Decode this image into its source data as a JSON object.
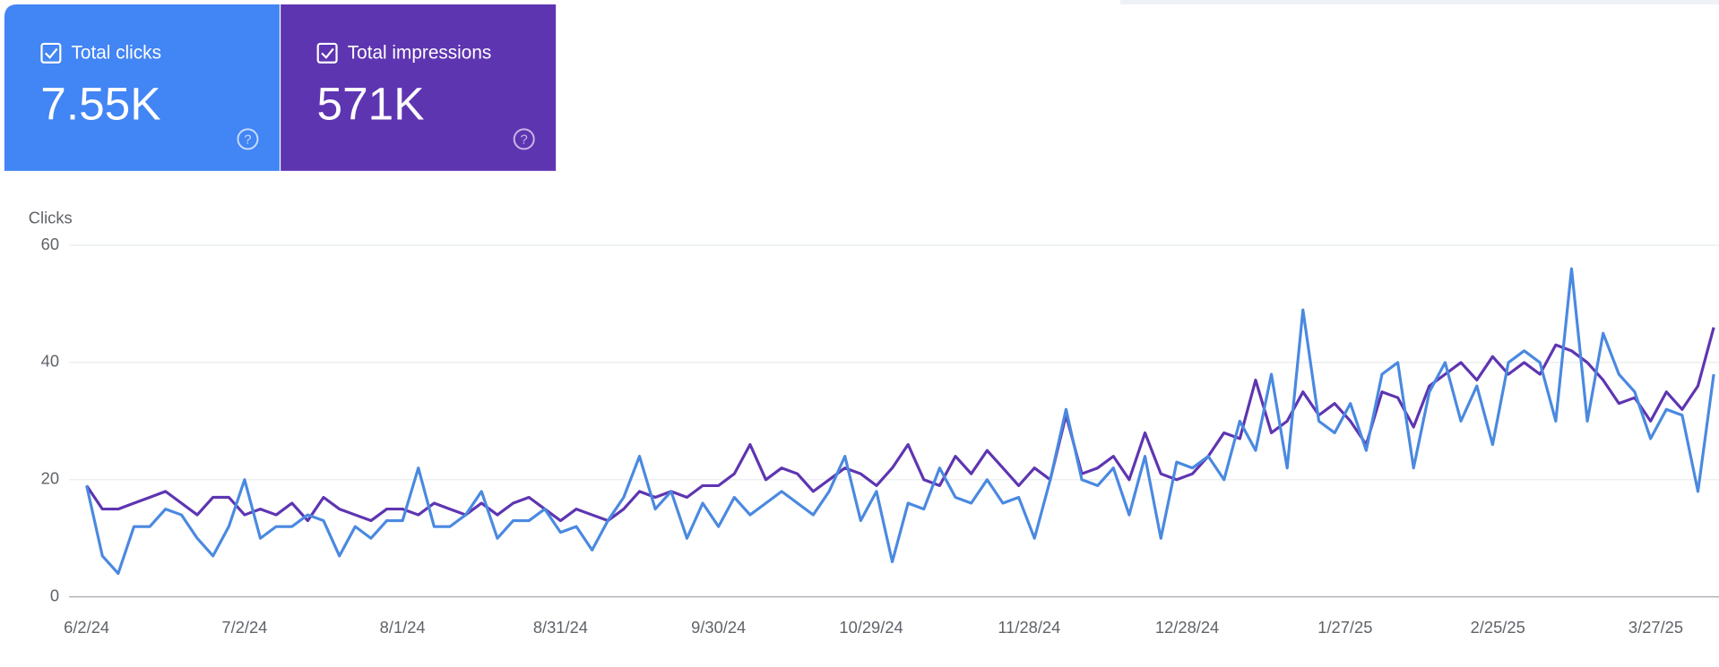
{
  "cards": [
    {
      "value": "7.55K"
    },
    {
      "value": "571K"
    }
  ],
  "chart_data": {
    "type": "line",
    "y_label": "Clicks",
    "x": [
      "6/2/24",
      "6/5/24",
      "6/8/24",
      "6/11/24",
      "6/14/24",
      "6/17/24",
      "6/20/24",
      "6/23/24",
      "6/26/24",
      "6/29/24",
      "7/2/24",
      "7/5/24",
      "7/8/24",
      "7/11/24",
      "7/14/24",
      "7/17/24",
      "7/20/24",
      "7/23/24",
      "7/26/24",
      "7/29/24",
      "8/1/24",
      "8/4/24",
      "8/7/24",
      "8/10/24",
      "8/13/24",
      "8/16/24",
      "8/19/24",
      "8/22/24",
      "8/25/24",
      "8/28/24",
      "8/31/24",
      "9/3/24",
      "9/6/24",
      "9/9/24",
      "9/12/24",
      "9/15/24",
      "9/18/24",
      "9/21/24",
      "9/24/24",
      "9/27/24",
      "9/30/24",
      "10/3/24",
      "10/6/24",
      "10/9/24",
      "10/12/24",
      "10/15/24",
      "10/18/24",
      "10/21/24",
      "10/24/24",
      "10/27/24",
      "10/30/24",
      "11/2/24",
      "11/5/24",
      "11/8/24",
      "11/11/24",
      "11/14/24",
      "11/17/24",
      "11/20/24",
      "11/23/24",
      "11/26/24",
      "11/29/24",
      "12/2/24",
      "12/5/24",
      "12/8/24",
      "12/11/24",
      "12/14/24",
      "12/17/24",
      "12/20/24",
      "12/23/24",
      "12/26/24",
      "12/29/24",
      "1/1/25",
      "1/4/25",
      "1/7/25",
      "1/10/25",
      "1/13/25",
      "1/16/25",
      "1/19/25",
      "1/22/25",
      "1/25/25",
      "1/28/25",
      "1/31/25",
      "2/3/25",
      "2/6/25",
      "2/9/25",
      "2/12/25",
      "2/15/25",
      "2/18/25",
      "2/21/25",
      "2/24/25",
      "2/27/25",
      "3/2/25",
      "3/5/25",
      "3/8/25",
      "3/11/25",
      "3/14/25",
      "3/17/25",
      "3/20/25",
      "3/23/25",
      "3/26/25",
      "3/29/25",
      "4/1/25",
      "4/4/25",
      "4/7/25"
    ],
    "xlim": [
      "6/2/24",
      "4/8/25"
    ],
    "xticks": [
      "6/2/24",
      "7/2/24",
      "8/1/24",
      "8/31/24",
      "9/30/24",
      "10/29/24",
      "11/28/24",
      "12/28/24",
      "1/27/25",
      "2/25/25",
      "3/27/25"
    ],
    "ylim": [
      0,
      60
    ],
    "yticks": [
      0,
      20,
      40,
      60
    ],
    "grid": true,
    "series": [
      {
        "name": "Total clicks",
        "color": "#4a89e0",
        "values": [
          19,
          7,
          4,
          12,
          12,
          15,
          14,
          10,
          7,
          12,
          20,
          10,
          12,
          12,
          14,
          13,
          7,
          12,
          10,
          13,
          13,
          22,
          12,
          12,
          14,
          18,
          10,
          13,
          13,
          15,
          11,
          12,
          8,
          13,
          17,
          24,
          15,
          18,
          10,
          16,
          12,
          17,
          14,
          16,
          18,
          16,
          14,
          18,
          24,
          13,
          18,
          6,
          16,
          15,
          22,
          17,
          16,
          20,
          16,
          17,
          10,
          20,
          32,
          20,
          19,
          22,
          14,
          24,
          10,
          23,
          22,
          24,
          20,
          30,
          25,
          38,
          22,
          49,
          30,
          28,
          33,
          25,
          38,
          40,
          22,
          35,
          40,
          30,
          36,
          26,
          40,
          42,
          40,
          30,
          56,
          30,
          45,
          38,
          35,
          27,
          32,
          31,
          18,
          38
        ]
      },
      {
        "name": "Total impressions",
        "color": "#5e35b1",
        "values": [
          19,
          15,
          15,
          16,
          17,
          18,
          16,
          14,
          17,
          17,
          14,
          15,
          14,
          16,
          13,
          17,
          15,
          14,
          13,
          15,
          15,
          14,
          16,
          15,
          14,
          16,
          14,
          16,
          17,
          15,
          13,
          15,
          14,
          13,
          15,
          18,
          17,
          18,
          17,
          19,
          19,
          21,
          26,
          20,
          22,
          21,
          18,
          20,
          22,
          21,
          19,
          22,
          26,
          20,
          19,
          24,
          21,
          25,
          22,
          19,
          22,
          20,
          31,
          21,
          22,
          24,
          20,
          28,
          21,
          20,
          21,
          24,
          28,
          27,
          37,
          28,
          30,
          35,
          31,
          33,
          30,
          26,
          35,
          34,
          29,
          36,
          38,
          40,
          37,
          41,
          38,
          40,
          38,
          43,
          42,
          40,
          37,
          33,
          34,
          30,
          35,
          32,
          36,
          46
        ]
      }
    ]
  }
}
